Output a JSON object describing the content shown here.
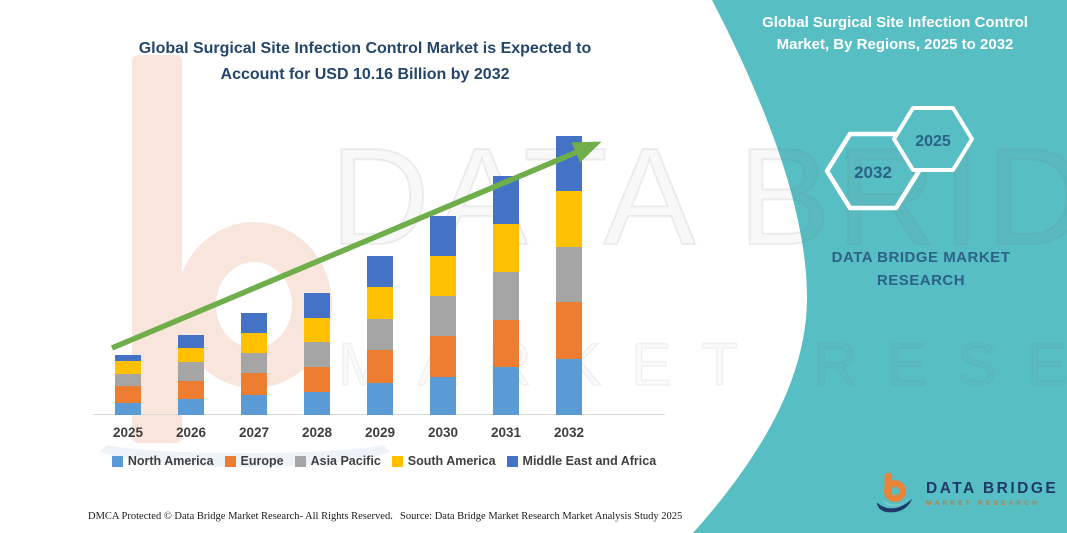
{
  "title": "Global Surgical Site Infection Control Market is Expected to Account for USD 10.16  Billion by 2032",
  "side_panel": {
    "panel_color": "#57BEC3",
    "title": "Global Surgical Site Infection Control Market, By Regions, 2025 to 2032",
    "hexagons": {
      "back": "2032",
      "front": "2025"
    },
    "brand_text": "DATA BRIDGE MARKET RESEARCH"
  },
  "watermark": {
    "line1": "DATA BRIDGE",
    "line2": "MARKET RESEARCH"
  },
  "chart_data": {
    "type": "bar",
    "stacked": true,
    "title": "Global Surgical Site Infection Control Market, By Regions, 2025 to 2032",
    "unit": "USD Billion",
    "xlabel": "",
    "ylabel": "",
    "grid": false,
    "legend_position": "bottom",
    "ylim": [
      0,
      10.5
    ],
    "categories": [
      "2025",
      "2026",
      "2027",
      "2028",
      "2029",
      "2030",
      "2031",
      "2032"
    ],
    "series": [
      {
        "name": "North America",
        "color": "#5B9BD5",
        "values": [
          0.44,
          0.57,
          0.73,
          0.85,
          1.15,
          1.4,
          1.74,
          2.03
        ]
      },
      {
        "name": "Europe",
        "color": "#ED7D31",
        "values": [
          0.6,
          0.67,
          0.79,
          0.91,
          1.21,
          1.46,
          1.72,
          2.1
        ]
      },
      {
        "name": "Asia Pacific",
        "color": "#A5A5A5",
        "values": [
          0.45,
          0.7,
          0.73,
          0.91,
          1.15,
          1.46,
          1.76,
          2.0
        ]
      },
      {
        "name": "South America",
        "color": "#FFC000",
        "values": [
          0.46,
          0.51,
          0.73,
          0.85,
          1.15,
          1.48,
          1.74,
          2.03
        ]
      },
      {
        "name": "Middle East and Africa",
        "color": "#4472C4",
        "values": [
          0.24,
          0.46,
          0.73,
          0.91,
          1.12,
          1.44,
          1.75,
          2.0
        ]
      }
    ],
    "totals": [
      2.19,
      2.91,
      3.71,
      4.43,
      5.78,
      7.24,
      8.71,
      10.16
    ],
    "annotations": [
      "rising green trend arrow from 2025 to 2032"
    ],
    "trend_arrow_color": "#6FAE4B"
  },
  "logo": {
    "name": "DATA BRIDGE",
    "subtitle": "MARKET RESEARCH"
  },
  "footer": {
    "left": "DMCA Protected © Data Bridge Market Research-  All Rights Reserved.",
    "source": "Source: Data Bridge Market Research  Market Analysis Study 2025"
  }
}
